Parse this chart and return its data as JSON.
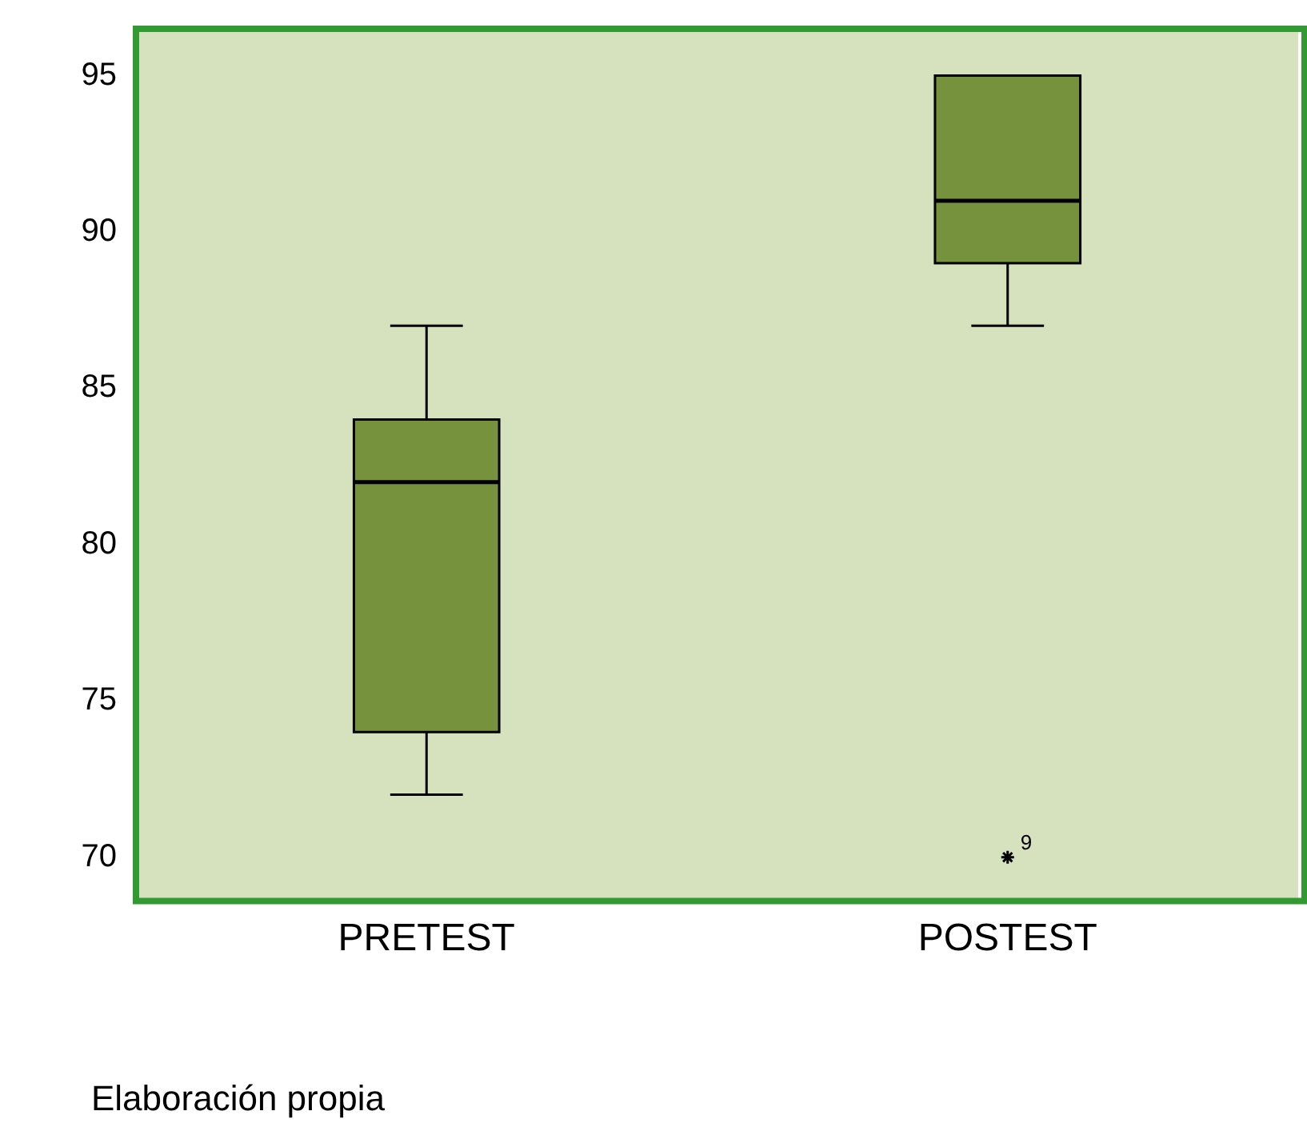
{
  "chart_data": {
    "type": "box",
    "categories": [
      "PRETEST",
      "POSTEST"
    ],
    "boxes": [
      {
        "low": 72,
        "q1": 74,
        "median": 82,
        "q3": 84,
        "high": 87
      },
      {
        "low": 87,
        "q1": 89,
        "median": 91,
        "q3": 95,
        "high": 95,
        "outliers": [
          70
        ]
      }
    ],
    "color": "#76923c",
    "marker": "star",
    "ylim": [
      68.6,
      96.5
    ],
    "yticks": [
      70,
      75,
      80,
      85,
      90,
      95
    ],
    "grid": false,
    "legend": false,
    "annotations": [
      "9",
      "Elaboración propia"
    ]
  }
}
